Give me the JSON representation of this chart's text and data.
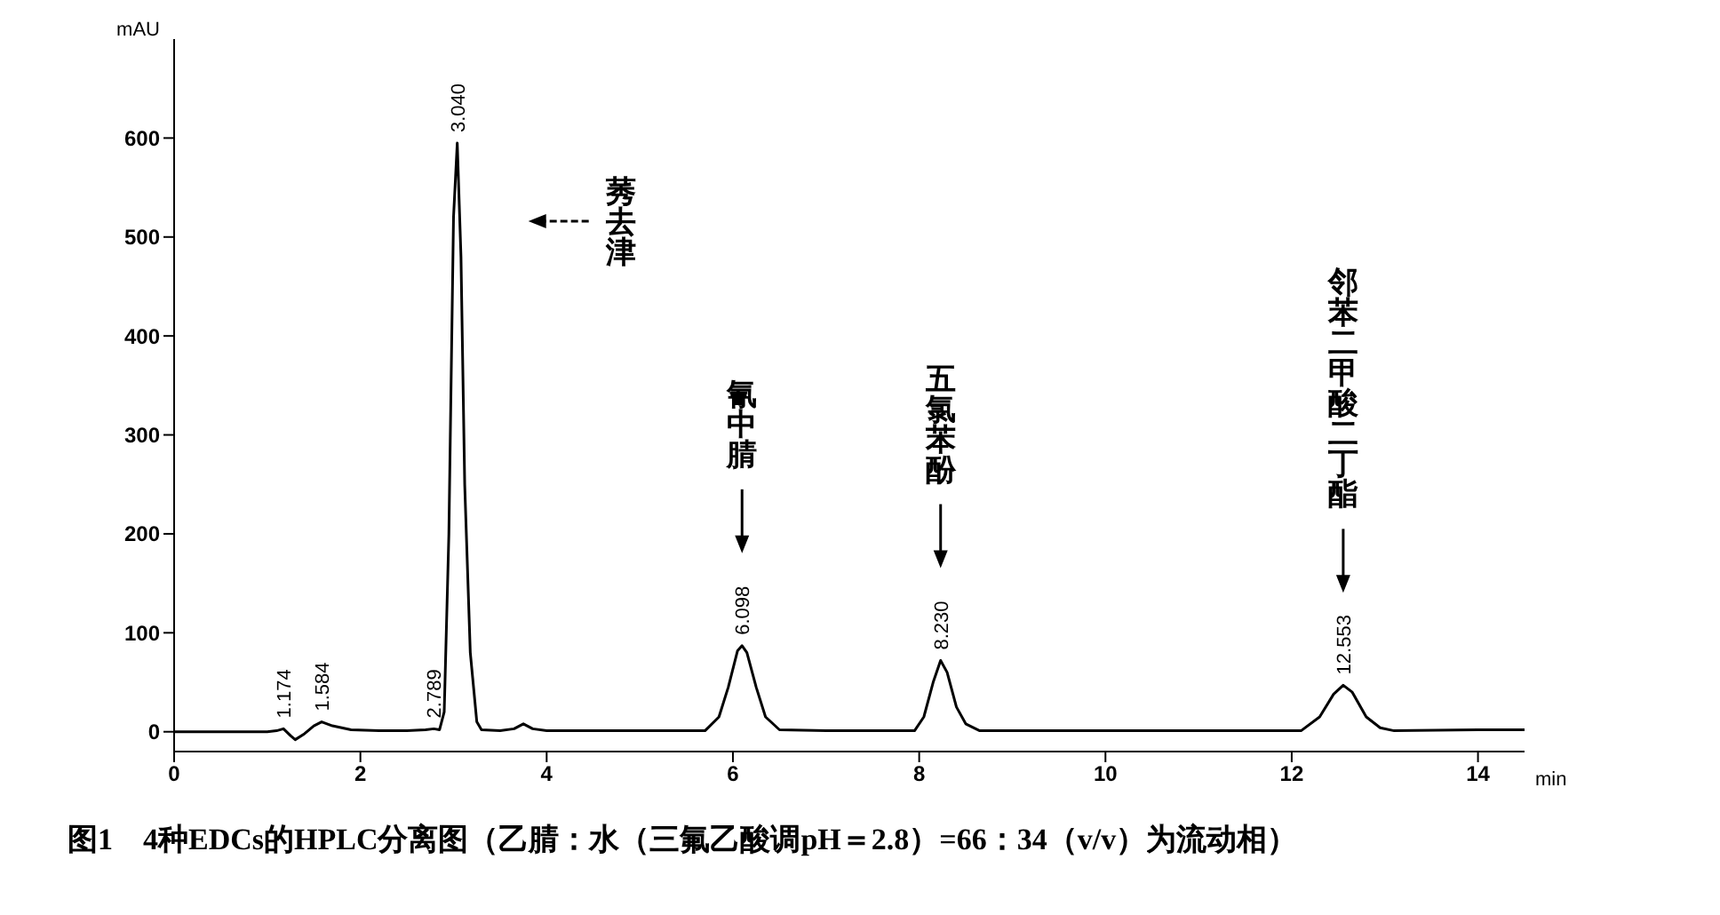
{
  "chart_data": {
    "type": "line",
    "title": "图1　4种EDCs的HPLC分离图（乙腈：水（三氟乙酸调pH＝2.8）=66：34（v/v）为流动相）",
    "xlabel": "min",
    "ylabel": "mAU",
    "xlim": [
      0,
      14.5
    ],
    "xticks": [
      0,
      2,
      4,
      6,
      8,
      10,
      12,
      14
    ],
    "ylim": [
      -20,
      700
    ],
    "yticks": [
      0,
      100,
      200,
      300,
      400,
      500,
      600
    ],
    "series": [
      {
        "color": "#000000",
        "x": [
          0,
          0.5,
          1.0,
          1.1,
          1.174,
          1.25,
          1.3,
          1.4,
          1.5,
          1.584,
          1.7,
          1.9,
          2.2,
          2.5,
          2.7,
          2.789,
          2.85,
          2.9,
          2.95,
          3.0,
          3.04,
          3.08,
          3.12,
          3.18,
          3.25,
          3.3,
          3.5,
          3.65,
          3.75,
          3.85,
          4.0,
          5.0,
          5.7,
          5.85,
          5.95,
          6.05,
          6.098,
          6.15,
          6.25,
          6.35,
          6.5,
          7.0,
          7.95,
          8.05,
          8.15,
          8.23,
          8.3,
          8.4,
          8.5,
          8.65,
          9.5,
          11.0,
          12.1,
          12.3,
          12.45,
          12.553,
          12.65,
          12.8,
          12.95,
          13.1,
          14.0,
          14.5
        ],
        "values": [
          0,
          0,
          0,
          1,
          3,
          -4,
          -8,
          -2,
          6,
          10,
          6,
          2,
          1,
          1,
          2,
          3,
          2,
          20,
          200,
          520,
          595,
          480,
          250,
          80,
          10,
          2,
          1,
          3,
          8,
          3,
          1,
          1,
          1,
          15,
          45,
          82,
          87,
          80,
          45,
          15,
          2,
          1,
          1,
          15,
          50,
          72,
          60,
          25,
          8,
          1,
          1,
          1,
          1,
          15,
          38,
          47,
          40,
          15,
          4,
          1,
          2,
          2
        ]
      }
    ],
    "line_style": "solid",
    "marker": "none",
    "annotations": [
      {
        "text": "1.174",
        "x": 1.174,
        "y": 3
      },
      {
        "text": "1.584",
        "x": 1.584,
        "y": 10
      },
      {
        "text": "2.789",
        "x": 2.789,
        "y": 3
      },
      {
        "text": "3.040",
        "x": 3.04,
        "y": 595
      },
      {
        "text": "6.098",
        "x": 6.098,
        "y": 87
      },
      {
        "text": "8.230",
        "x": 8.23,
        "y": 72
      },
      {
        "text": "12.553",
        "x": 12.553,
        "y": 47
      },
      "莠去津",
      "氰中腈",
      "五氯苯酚",
      "邻苯二甲酸二丁酯"
    ]
  }
}
